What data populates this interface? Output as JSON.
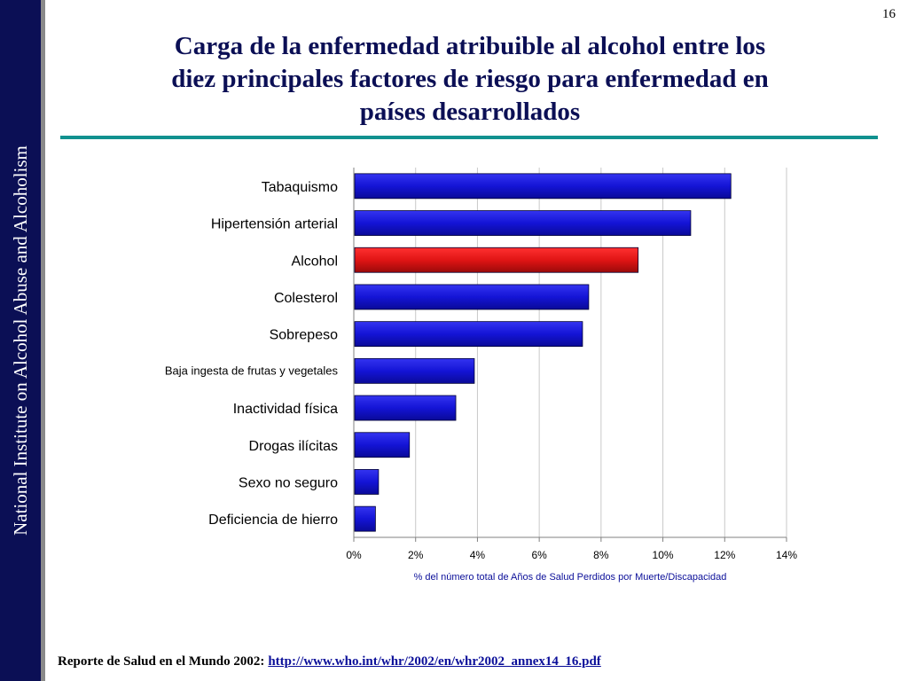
{
  "sidebar": {
    "text": "National Institute on Alcohol Abuse and Alcoholism"
  },
  "page_number": "16",
  "title": {
    "line1": "Carga de la enfermedad atribuible al alcohol entre los",
    "line2": "diez principales factores de riesgo para enfermedad en",
    "line3": "países desarrollados"
  },
  "footer": {
    "label": "Reporte de Salud en el Mundo 2002:",
    "link": "http://www.who.int/whr/2002/en/whr2002_annex14_16.pdf"
  },
  "colors": {
    "sidebar": "#0b0f55",
    "title": "#0b0f55",
    "rule": "#11918f",
    "bar_default": "#1414d6",
    "bar_highlight": "#e01414",
    "axis_label": "#0b0f99"
  },
  "chart_data": {
    "type": "bar",
    "orientation": "horizontal",
    "categories": [
      "Tabaquismo",
      "Hipertensión arterial",
      "Alcohol",
      "Colesterol",
      "Sobrepeso",
      "Baja ingesta de frutas y vegetales",
      "Inactividad física",
      "Drogas ilícitas",
      "Sexo no seguro",
      "Deficiencia de hierro"
    ],
    "values": [
      12.2,
      10.9,
      9.2,
      7.6,
      7.4,
      3.9,
      3.3,
      1.8,
      0.8,
      0.7
    ],
    "highlight_category": "Alcohol",
    "xlim": [
      0,
      14
    ],
    "xticks": [
      0,
      2,
      4,
      6,
      8,
      10,
      12,
      14
    ],
    "tick_labels": [
      "0%",
      "2%",
      "4%",
      "6%",
      "8%",
      "10%",
      "12%",
      "14%"
    ],
    "xlabel": "% del número total de Años de Salud Perdidos por Muerte/Discapacidad",
    "grid": true
  }
}
